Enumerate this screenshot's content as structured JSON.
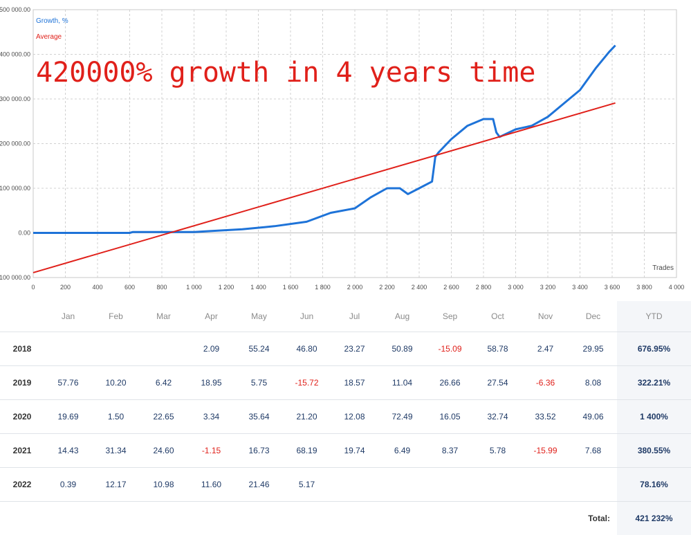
{
  "chart_data": {
    "type": "line",
    "legend": [
      "Growth, %",
      "Average"
    ],
    "legend_position": "top-left",
    "annotation": "420000% growth in 4 years time",
    "xlabel": "Trades",
    "ylabel": "",
    "grid": true,
    "xlim": [
      0,
      4000
    ],
    "ylim": [
      -100000,
      500000
    ],
    "x_ticks": [
      "0",
      "200",
      "400",
      "600",
      "800",
      "1 000",
      "1 200",
      "1 400",
      "1 600",
      "1 800",
      "2 000",
      "2 200",
      "2 400",
      "2 600",
      "2 800",
      "3 000",
      "3 200",
      "3 400",
      "3 600",
      "3 800",
      "4 000"
    ],
    "y_ticks": [
      "500 000.00",
      "400 000.00",
      "300 000.00",
      "200 000.00",
      "100 000.00",
      "0.00",
      "-100 000.00"
    ],
    "series": [
      {
        "name": "Growth, %",
        "color": "#1e73d8",
        "x": [
          0,
          600,
          620,
          1000,
          1100,
          1300,
          1500,
          1700,
          1850,
          2000,
          2100,
          2200,
          2280,
          2330,
          2400,
          2480,
          2500,
          2520,
          2600,
          2700,
          2800,
          2860,
          2880,
          2900,
          3000,
          3100,
          3200,
          3300,
          3400,
          3500,
          3580,
          3620
        ],
        "values": [
          0,
          0,
          2000,
          2000,
          4000,
          8000,
          15000,
          25000,
          45000,
          55000,
          80000,
          100000,
          100000,
          87000,
          100000,
          115000,
          170000,
          180000,
          210000,
          240000,
          255000,
          255000,
          225000,
          215000,
          232000,
          240000,
          260000,
          290000,
          320000,
          370000,
          405000,
          420000
        ]
      },
      {
        "name": "Average",
        "color": "#e0201a",
        "x": [
          0,
          3620
        ],
        "values": [
          -89000,
          291000
        ]
      }
    ]
  },
  "table": {
    "headers": [
      "",
      "Jan",
      "Feb",
      "Mar",
      "Apr",
      "May",
      "Jun",
      "Jul",
      "Aug",
      "Sep",
      "Oct",
      "Nov",
      "Dec",
      "YTD"
    ],
    "rows": [
      {
        "year": "2018",
        "values": [
          "",
          "",
          "",
          "2.09",
          "55.24",
          "46.80",
          "23.27",
          "50.89",
          "-15.09",
          "58.78",
          "2.47",
          "29.95"
        ],
        "ytd": "676.95%"
      },
      {
        "year": "2019",
        "values": [
          "57.76",
          "10.20",
          "6.42",
          "18.95",
          "5.75",
          "-15.72",
          "18.57",
          "11.04",
          "26.66",
          "27.54",
          "-6.36",
          "8.08"
        ],
        "ytd": "322.21%"
      },
      {
        "year": "2020",
        "values": [
          "19.69",
          "1.50",
          "22.65",
          "3.34",
          "35.64",
          "21.20",
          "12.08",
          "72.49",
          "16.05",
          "32.74",
          "33.52",
          "49.06"
        ],
        "ytd": "1 400%"
      },
      {
        "year": "2021",
        "values": [
          "14.43",
          "31.34",
          "24.60",
          "-1.15",
          "16.73",
          "68.19",
          "19.74",
          "6.49",
          "8.37",
          "5.78",
          "-15.99",
          "7.68"
        ],
        "ytd": "380.55%"
      },
      {
        "year": "2022",
        "values": [
          "0.39",
          "12.17",
          "10.98",
          "11.60",
          "21.46",
          "5.17",
          "",
          "",
          "",
          "",
          "",
          ""
        ],
        "ytd": "78.16%"
      }
    ],
    "total_label": "Total:",
    "total_value": "421 232%"
  }
}
